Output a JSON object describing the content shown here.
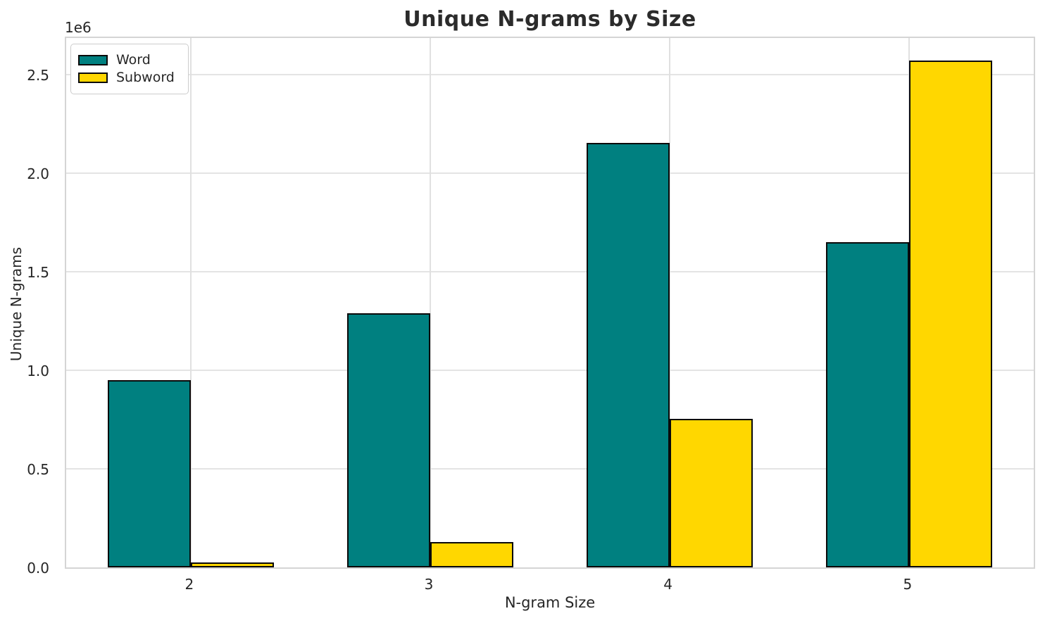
{
  "figure": {
    "title": "Unique N-grams by Size",
    "offset_text": "1e6"
  },
  "chart_data": {
    "type": "bar",
    "title": "Unique N-grams by Size",
    "xlabel": "N-gram Size",
    "ylabel": "Unique N-grams",
    "categories": [
      "2",
      "3",
      "4",
      "5"
    ],
    "series": [
      {
        "name": "Word",
        "color": "#008080",
        "values": [
          950000,
          1290000,
          2155000,
          1650000
        ]
      },
      {
        "name": "Subword",
        "color": "#FFD700",
        "values": [
          25000,
          130000,
          755000,
          2570000
        ]
      }
    ],
    "bar_edge_color": "#0a0a0a",
    "ylim": [
      0,
      2700000
    ],
    "yticks": [
      0,
      500000,
      1000000,
      1500000,
      2000000,
      2500000
    ],
    "ytick_labels": [
      "0.0",
      "0.5",
      "1.0",
      "1.5",
      "2.0",
      "2.5"
    ],
    "y_offset_label": "1e6",
    "grid": true,
    "legend_position": "upper left",
    "legend_entries": [
      "Word",
      "Subword"
    ]
  }
}
